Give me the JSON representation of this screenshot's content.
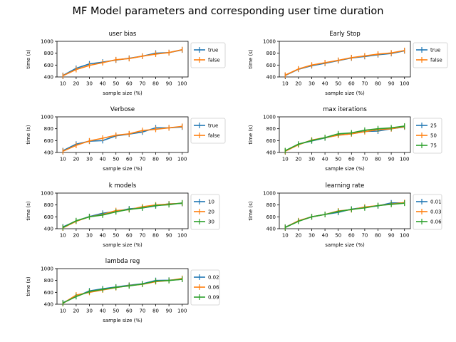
{
  "suptitle": "MF Model parameters and corresponding user time duration",
  "colors": [
    "#1f77b4",
    "#ff7f0e",
    "#2ca02c"
  ],
  "chart_data": [
    {
      "type": "line",
      "title": "user bias",
      "xlabel": "sample size (%)",
      "ylabel": "time (s)",
      "categories": [
        10,
        20,
        30,
        40,
        50,
        60,
        70,
        80,
        90,
        100
      ],
      "ylim": [
        400,
        1000
      ],
      "yticks": [
        400,
        600,
        800,
        1000
      ],
      "legend": "outside-right",
      "series": [
        {
          "name": "true",
          "values": [
            425,
            545,
            620,
            650,
            685,
            715,
            750,
            800,
            810,
            855
          ]
        },
        {
          "name": "false",
          "values": [
            420,
            525,
            595,
            640,
            690,
            710,
            750,
            785,
            810,
            860
          ]
        }
      ]
    },
    {
      "type": "line",
      "title": "Early Stop",
      "xlabel": "sample size (%)",
      "ylabel": "time (s)",
      "categories": [
        10,
        20,
        30,
        40,
        50,
        60,
        70,
        80,
        90,
        100
      ],
      "ylim": [
        400,
        1000
      ],
      "yticks": [
        400,
        600,
        800,
        1000
      ],
      "legend": "outside-right",
      "series": [
        {
          "name": "true",
          "values": [
            425,
            530,
            590,
            630,
            675,
            720,
            745,
            775,
            795,
            840
          ]
        },
        {
          "name": "false",
          "values": [
            430,
            535,
            600,
            640,
            680,
            725,
            755,
            785,
            805,
            845
          ]
        }
      ]
    },
    {
      "type": "line",
      "title": "Verbose",
      "xlabel": "sample size (%)",
      "ylabel": "time (s)",
      "categories": [
        10,
        20,
        30,
        40,
        50,
        60,
        70,
        80,
        90,
        100
      ],
      "ylim": [
        400,
        1000
      ],
      "yticks": [
        400,
        600,
        800,
        1000
      ],
      "legend": "outside-right",
      "series": [
        {
          "name": "true",
          "values": [
            430,
            540,
            590,
            600,
            680,
            710,
            745,
            815,
            815,
            830
          ]
        },
        {
          "name": "false",
          "values": [
            420,
            520,
            595,
            640,
            690,
            715,
            770,
            790,
            815,
            840
          ]
        }
      ]
    },
    {
      "type": "line",
      "title": "max iterations",
      "xlabel": "sample size (%)",
      "ylabel": "time (s)",
      "categories": [
        10,
        20,
        30,
        40,
        50,
        60,
        70,
        80,
        90,
        100
      ],
      "ylim": [
        400,
        1000
      ],
      "yticks": [
        400,
        600,
        800,
        1000
      ],
      "legend": "outside-right",
      "series": [
        {
          "name": "25",
          "values": [
            425,
            540,
            595,
            645,
            695,
            715,
            755,
            760,
            800,
            830
          ]
        },
        {
          "name": "50",
          "values": [
            420,
            530,
            610,
            650,
            690,
            715,
            750,
            785,
            800,
            835
          ]
        },
        {
          "name": "75",
          "values": [
            430,
            540,
            600,
            650,
            715,
            730,
            775,
            800,
            815,
            845
          ]
        }
      ]
    },
    {
      "type": "line",
      "title": "k models",
      "xlabel": "sample size (%)",
      "ylabel": "time (s)",
      "categories": [
        10,
        20,
        30,
        40,
        50,
        60,
        70,
        80,
        90,
        100
      ],
      "ylim": [
        400,
        1000
      ],
      "yticks": [
        400,
        600,
        800,
        1000
      ],
      "legend": "outside-right",
      "series": [
        {
          "name": "10",
          "values": [
            430,
            530,
            605,
            660,
            690,
            735,
            750,
            785,
            820,
            825
          ]
        },
        {
          "name": "20",
          "values": [
            415,
            525,
            600,
            640,
            705,
            720,
            770,
            800,
            815,
            830
          ]
        },
        {
          "name": "30",
          "values": [
            420,
            535,
            600,
            630,
            685,
            725,
            750,
            790,
            805,
            835
          ]
        }
      ]
    },
    {
      "type": "line",
      "title": "learning rate",
      "xlabel": "sample size (%)",
      "ylabel": "time (s)",
      "categories": [
        10,
        20,
        30,
        40,
        50,
        60,
        70,
        80,
        90,
        100
      ],
      "ylim": [
        400,
        1000
      ],
      "yticks": [
        400,
        600,
        800,
        1000
      ],
      "legend": "outside-right",
      "series": [
        {
          "name": "0.01",
          "values": [
            425,
            530,
            600,
            640,
            675,
            730,
            760,
            785,
            835,
            835
          ]
        },
        {
          "name": "0.03",
          "values": [
            420,
            535,
            600,
            640,
            700,
            720,
            765,
            790,
            815,
            840
          ]
        },
        {
          "name": "0.06",
          "values": [
            420,
            525,
            600,
            640,
            690,
            725,
            750,
            790,
            810,
            830
          ]
        }
      ]
    },
    {
      "type": "line",
      "title": "lambda reg",
      "xlabel": "sample size (%)",
      "ylabel": "time (s)",
      "categories": [
        10,
        20,
        30,
        40,
        50,
        60,
        70,
        80,
        90,
        100
      ],
      "ylim": [
        400,
        1000
      ],
      "yticks": [
        400,
        600,
        800,
        1000
      ],
      "legend": "outside-right",
      "series": [
        {
          "name": "0.02",
          "values": [
            425,
            530,
            625,
            660,
            690,
            720,
            745,
            800,
            805,
            820
          ]
        },
        {
          "name": "0.06",
          "values": [
            415,
            555,
            600,
            640,
            680,
            715,
            735,
            780,
            800,
            835
          ]
        },
        {
          "name": "0.09",
          "values": [
            420,
            530,
            615,
            650,
            685,
            710,
            740,
            790,
            800,
            820
          ]
        }
      ]
    }
  ]
}
